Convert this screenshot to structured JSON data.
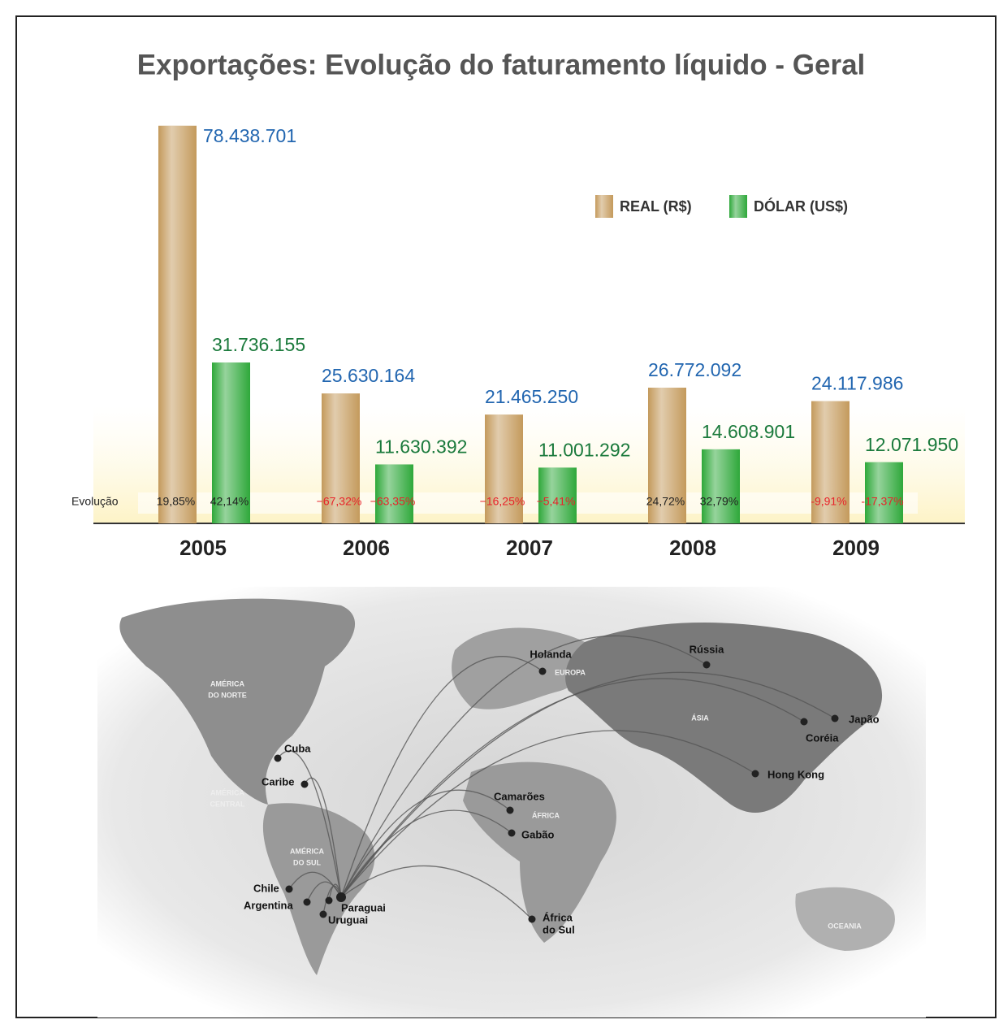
{
  "chart_data": {
    "type": "bar",
    "title": "Exportações: Evolução do faturamento líquido - Geral",
    "categories": [
      "2005",
      "2006",
      "2007",
      "2008",
      "2009"
    ],
    "series": [
      {
        "name": "REAL (R$)",
        "color": "#c49a5c",
        "label_color": "#2266b0",
        "values": [
          78438701,
          25630164,
          21465250,
          26772092,
          24117986
        ],
        "value_labels": [
          "78.438.701",
          "25.630.164",
          "21.465.250",
          "26.772.092",
          "24.117.986"
        ],
        "evolution": [
          19.85,
          -67.32,
          -16.25,
          24.72,
          -9.91
        ],
        "evolution_labels": [
          "19,85%",
          "−67,32%",
          "−16,25%",
          "24,72%",
          "-9,91%"
        ]
      },
      {
        "name": "DÓLAR (US$)",
        "color": "#2ea83a",
        "label_color": "#1b7a3c",
        "values": [
          31736155,
          11630392,
          11001292,
          14608901,
          12071950
        ],
        "value_labels": [
          "31.736.155",
          "11.630.392",
          "11.001.292",
          "14.608.901",
          "12.071.950"
        ],
        "evolution": [
          42.14,
          -63.35,
          -5.41,
          32.79,
          -17.37
        ],
        "evolution_labels": [
          "42,14%",
          "−63,35%",
          "−5,41%",
          "32,79%",
          "-17,37%"
        ]
      }
    ],
    "evolution_title": "Evolução",
    "ylim": [
      0,
      80000000
    ],
    "legend": "top-right"
  },
  "map": {
    "regions": [
      [
        "AMÉRICA",
        "DO NORTE"
      ],
      [
        "AMÉRICA",
        "CENTRAL"
      ],
      [
        "AMÉRICA",
        "DO SUL"
      ],
      [
        "EUROPA"
      ],
      [
        "ÁSIA"
      ],
      [
        "ÁFRICA"
      ],
      [
        "OCEANIA"
      ]
    ],
    "destinations": [
      [
        "Holanda"
      ],
      [
        "Rússia"
      ],
      [
        "Japão"
      ],
      [
        "Coréia"
      ],
      [
        "Hong Kong"
      ],
      [
        "Cuba"
      ],
      [
        "Caribe"
      ],
      [
        "Camarões"
      ],
      [
        "Gabão"
      ],
      [
        "Chile"
      ],
      [
        "Argentina"
      ],
      [
        "Paraguai"
      ],
      [
        "Uruguai"
      ],
      [
        "África",
        "do Sul"
      ]
    ]
  }
}
